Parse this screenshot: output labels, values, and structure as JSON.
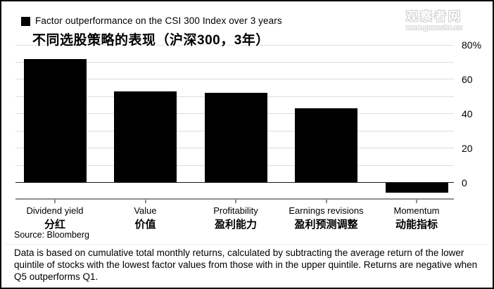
{
  "header": {
    "legend_label": "Factor outperformance on the CSI 300 Index over 3 years",
    "subtitle_zh": "不同选股策略的表现（沪深300，3年）"
  },
  "watermark": {
    "site_name": "观察者网",
    "site_url": "www.guancha.cn"
  },
  "chart_data": {
    "type": "bar",
    "title": "Factor outperformance on the CSI 300 Index over 3 years",
    "subtitle": "不同选股策略的表现（沪深300，3年）",
    "categories": [
      "Dividend yield",
      "Value",
      "Profitability",
      "Earnings revisions",
      "Momentum"
    ],
    "categories_zh": [
      "分红",
      "价值",
      "盈利能力",
      "盈利预测调整",
      "动能指标"
    ],
    "values": [
      72,
      53,
      52,
      43,
      -6
    ],
    "xlabel": "",
    "ylabel": "",
    "ylim": [
      -10,
      80
    ],
    "grid": true,
    "gridline_step": 10,
    "ytick_labels": [
      {
        "value": 80,
        "label": "80%"
      },
      {
        "value": 60,
        "label": "60"
      },
      {
        "value": 40,
        "label": "40"
      },
      {
        "value": 20,
        "label": "20"
      },
      {
        "value": 0,
        "label": "0"
      }
    ],
    "legend_position": "top-left",
    "bar_color": "#000000",
    "gridline_color": "#dedede",
    "zero_line_color": "#1a1a1a",
    "axis_color": "#8f8f8f"
  },
  "footer": {
    "source": "Source: Bloomberg",
    "note": "Data is based on cumulative total monthly returns, calculated by subtracting the average return of the lower quintile of stocks with the lowest factor values from those with in the upper quintile. Returns are negative when Q5 outperforms Q1."
  }
}
